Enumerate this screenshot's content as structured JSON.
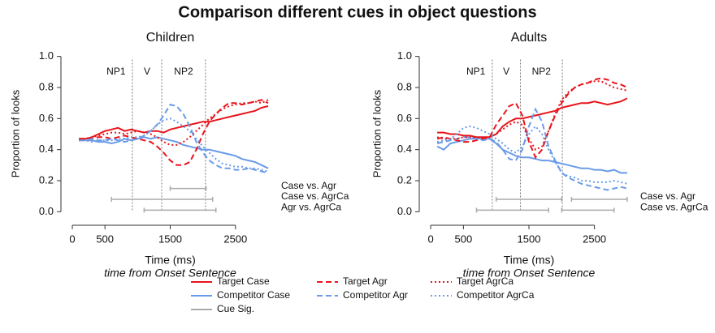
{
  "title": "Comparison different cues in object questions",
  "legend": [
    {
      "name": "Target Case",
      "color": "#e8141b",
      "dash": "solid"
    },
    {
      "name": "Competitor Case",
      "color": "#6a9be8",
      "dash": "solid"
    },
    {
      "name": "Target Agr",
      "color": "#e8141b",
      "dash": "dashed"
    },
    {
      "name": "Competitor Agr",
      "color": "#6a9be8",
      "dash": "dashed"
    },
    {
      "name": "Target AgrCa",
      "color": "#e8141b",
      "dash": "dotted"
    },
    {
      "name": "Competitor AgrCa",
      "color": "#6a9be8",
      "dash": "dotted"
    },
    {
      "name": "Cue Sig.",
      "color": "#aaaaaa",
      "dash": "solid"
    }
  ],
  "chart_data": [
    {
      "type": "line",
      "title": "Children",
      "x_label": "Time (ms)",
      "x_sublabel": "time from Onset Sentence",
      "y_label": "Proportion of looks",
      "xlim": [
        -100,
        3100
      ],
      "ylim": [
        -0.04,
        1.04
      ],
      "xticks": [
        0,
        500,
        1500,
        2500
      ],
      "yticks": [
        {
          "value": 0,
          "label": "0.0"
        },
        0.2,
        0.4,
        0.6,
        0.8,
        {
          "value": 1,
          "label": "1.0"
        }
      ],
      "markers": [
        {
          "label": "NP1",
          "x": 920
        },
        {
          "label": "V",
          "x": 1370
        },
        {
          "label": "NP2",
          "x": 2040
        }
      ],
      "x": [
        100,
        200,
        300,
        400,
        500,
        600,
        700,
        800,
        900,
        1000,
        1100,
        1200,
        1300,
        1400,
        1500,
        1600,
        1700,
        1800,
        1900,
        2000,
        2100,
        2200,
        2300,
        2400,
        2500,
        2600,
        2700,
        2800,
        2900,
        3000
      ],
      "series": [
        {
          "values": [
            0.47,
            0.47,
            0.48,
            0.5,
            0.52,
            0.53,
            0.54,
            0.52,
            0.53,
            0.52,
            0.51,
            0.52,
            0.52,
            0.51,
            0.53,
            0.54,
            0.55,
            0.56,
            0.57,
            0.58,
            0.58,
            0.59,
            0.6,
            0.61,
            0.62,
            0.63,
            0.64,
            0.65,
            0.67,
            0.68
          ]
        },
        {
          "values": [
            0.46,
            0.46,
            0.46,
            0.45,
            0.45,
            0.44,
            0.45,
            0.47,
            0.46,
            0.47,
            0.48,
            0.47,
            0.48,
            0.47,
            0.46,
            0.45,
            0.43,
            0.42,
            0.41,
            0.4,
            0.4,
            0.39,
            0.38,
            0.37,
            0.36,
            0.34,
            0.33,
            0.32,
            0.3,
            0.28
          ]
        },
        {
          "values": [
            0.47,
            0.47,
            0.47,
            0.48,
            0.48,
            0.47,
            0.48,
            0.49,
            0.48,
            0.47,
            0.46,
            0.45,
            0.42,
            0.38,
            0.33,
            0.3,
            0.3,
            0.32,
            0.4,
            0.5,
            0.58,
            0.63,
            0.67,
            0.7,
            0.7,
            0.69,
            0.7,
            0.71,
            0.72,
            0.7
          ]
        },
        {
          "values": [
            0.46,
            0.46,
            0.47,
            0.46,
            0.46,
            0.47,
            0.46,
            0.45,
            0.46,
            0.47,
            0.49,
            0.52,
            0.56,
            0.62,
            0.69,
            0.68,
            0.63,
            0.55,
            0.45,
            0.38,
            0.33,
            0.3,
            0.28,
            0.28,
            0.27,
            0.27,
            0.28,
            0.27,
            0.26,
            0.25
          ]
        },
        {
          "values": [
            0.46,
            0.47,
            0.48,
            0.49,
            0.5,
            0.51,
            0.51,
            0.5,
            0.51,
            0.52,
            0.51,
            0.5,
            0.48,
            0.45,
            0.43,
            0.43,
            0.45,
            0.48,
            0.52,
            0.56,
            0.6,
            0.63,
            0.66,
            0.68,
            0.69,
            0.7,
            0.7,
            0.71,
            0.7,
            0.72
          ]
        },
        {
          "values": [
            0.46,
            0.46,
            0.45,
            0.46,
            0.46,
            0.46,
            0.47,
            0.47,
            0.48,
            0.48,
            0.49,
            0.52,
            0.56,
            0.59,
            0.6,
            0.58,
            0.55,
            0.52,
            0.47,
            0.42,
            0.38,
            0.34,
            0.31,
            0.3,
            0.29,
            0.29,
            0.28,
            0.28,
            0.27,
            0.26
          ]
        }
      ],
      "significance": [
        {
          "label": "Case vs. Agr",
          "intervals": [
            [
              1500,
              2050
            ]
          ]
        },
        {
          "label": "Case vs. AgrCa",
          "intervals": [
            [
              600,
              2150
            ]
          ]
        },
        {
          "label": "Agr vs. AgrCa",
          "intervals": [
            [
              1100,
              2200
            ]
          ]
        }
      ]
    },
    {
      "type": "line",
      "title": "Adults",
      "x_label": "Time (ms)",
      "x_sublabel": "time from Onset Sentence",
      "y_label": "Proportion of looks",
      "xlim": [
        -100,
        3100
      ],
      "ylim": [
        -0.04,
        1.04
      ],
      "xticks": [
        0,
        500,
        1500,
        2500
      ],
      "yticks": [
        {
          "value": 0,
          "label": "0.0"
        },
        0.2,
        0.4,
        0.6,
        0.8,
        {
          "value": 1,
          "label": "1.0"
        }
      ],
      "markers": [
        {
          "label": "NP1",
          "x": 940
        },
        {
          "label": "V",
          "x": 1370
        },
        {
          "label": "NP2",
          "x": 2010
        }
      ],
      "x": [
        100,
        200,
        300,
        400,
        500,
        600,
        700,
        800,
        900,
        1000,
        1100,
        1200,
        1300,
        1400,
        1500,
        1600,
        1700,
        1800,
        1900,
        2000,
        2100,
        2200,
        2300,
        2400,
        2500,
        2600,
        2700,
        2800,
        2900,
        3000
      ],
      "series": [
        {
          "values": [
            0.51,
            0.51,
            0.5,
            0.5,
            0.49,
            0.49,
            0.48,
            0.48,
            0.48,
            0.5,
            0.55,
            0.58,
            0.6,
            0.6,
            0.61,
            0.62,
            0.63,
            0.64,
            0.65,
            0.67,
            0.68,
            0.69,
            0.7,
            0.7,
            0.71,
            0.7,
            0.69,
            0.7,
            0.71,
            0.73
          ]
        },
        {
          "values": [
            0.42,
            0.4,
            0.44,
            0.45,
            0.46,
            0.47,
            0.47,
            0.47,
            0.47,
            0.44,
            0.4,
            0.38,
            0.36,
            0.35,
            0.35,
            0.34,
            0.33,
            0.33,
            0.32,
            0.31,
            0.3,
            0.29,
            0.28,
            0.28,
            0.27,
            0.27,
            0.26,
            0.27,
            0.25,
            0.25
          ]
        },
        {
          "values": [
            0.47,
            0.48,
            0.47,
            0.46,
            0.45,
            0.45,
            0.46,
            0.47,
            0.48,
            0.56,
            0.62,
            0.68,
            0.7,
            0.62,
            0.45,
            0.35,
            0.4,
            0.52,
            0.62,
            0.7,
            0.76,
            0.8,
            0.82,
            0.83,
            0.85,
            0.86,
            0.85,
            0.83,
            0.82,
            0.8
          ]
        },
        {
          "values": [
            0.44,
            0.45,
            0.46,
            0.47,
            0.48,
            0.48,
            0.47,
            0.46,
            0.47,
            0.45,
            0.4,
            0.34,
            0.33,
            0.4,
            0.55,
            0.66,
            0.58,
            0.42,
            0.33,
            0.25,
            0.22,
            0.2,
            0.18,
            0.17,
            0.16,
            0.15,
            0.14,
            0.15,
            0.16,
            0.15
          ]
        },
        {
          "values": [
            0.48,
            0.47,
            0.47,
            0.47,
            0.48,
            0.48,
            0.48,
            0.47,
            0.48,
            0.5,
            0.53,
            0.56,
            0.58,
            0.56,
            0.47,
            0.4,
            0.42,
            0.52,
            0.63,
            0.72,
            0.77,
            0.8,
            0.82,
            0.83,
            0.84,
            0.84,
            0.82,
            0.8,
            0.79,
            0.78
          ]
        },
        {
          "values": [
            0.45,
            0.46,
            0.47,
            0.5,
            0.54,
            0.55,
            0.54,
            0.52,
            0.5,
            0.47,
            0.44,
            0.4,
            0.38,
            0.42,
            0.5,
            0.55,
            0.5,
            0.4,
            0.32,
            0.25,
            0.23,
            0.22,
            0.2,
            0.2,
            0.19,
            0.19,
            0.19,
            0.2,
            0.19,
            0.18
          ]
        }
      ],
      "significance": [
        {
          "label": "Case vs. Agr",
          "intervals": [
            [
              1000,
              2000
            ],
            [
              2150,
              3000
            ]
          ]
        },
        {
          "label": "Case vs. AgrCa",
          "intervals": [
            [
              700,
              1800
            ],
            [
              2000,
              2800
            ]
          ]
        }
      ]
    }
  ]
}
